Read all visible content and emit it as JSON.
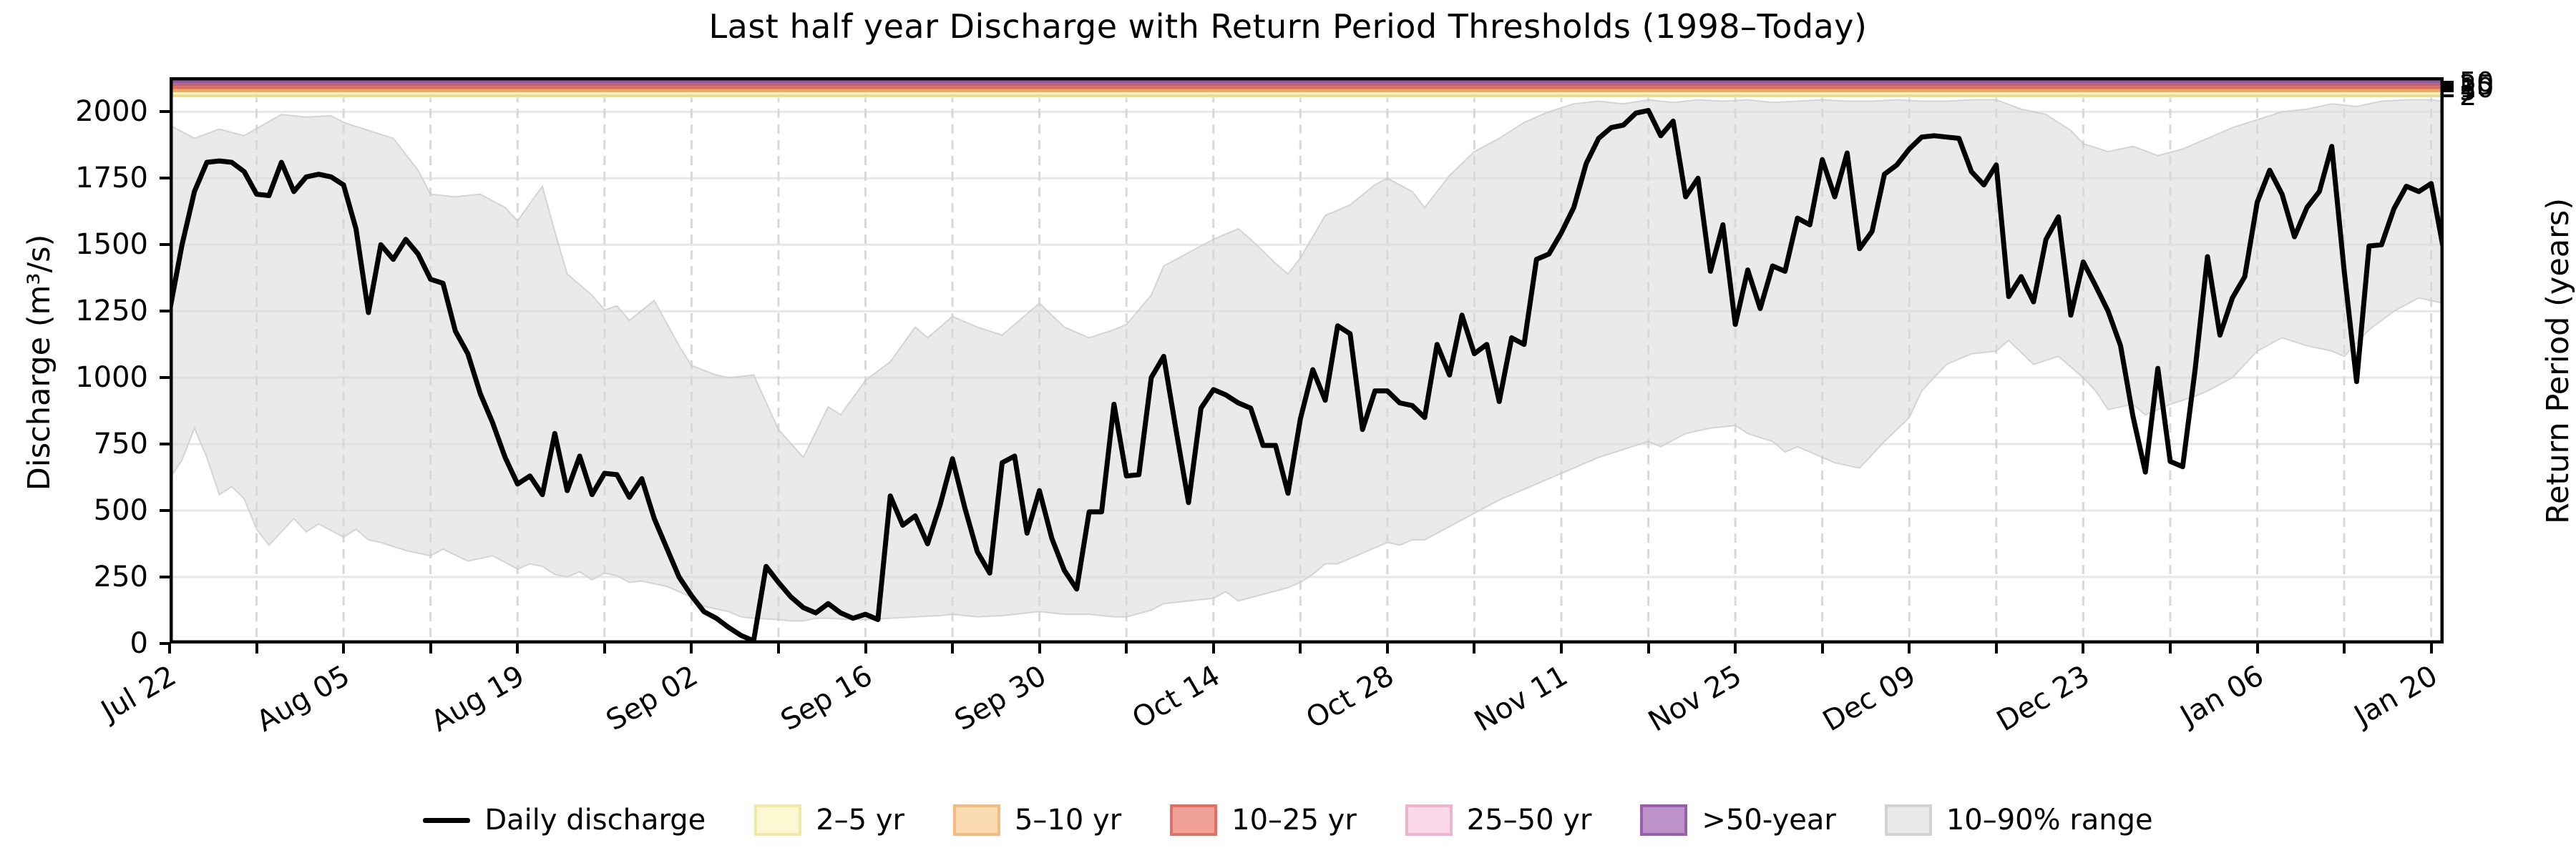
{
  "title": "Last half year Discharge with Return Period Thresholds (1998–Today)",
  "axes": {
    "left_label": "Discharge (m³/s)",
    "right_label": "Return Period (years)",
    "y_ticks": [
      {
        "label": "0",
        "value": 0
      },
      {
        "label": "250",
        "value": 250
      },
      {
        "label": "500",
        "value": 500
      },
      {
        "label": "750",
        "value": 750
      },
      {
        "label": "1000",
        "value": 1000
      },
      {
        "label": "1250",
        "value": 1250
      },
      {
        "label": "1500",
        "value": 1500
      },
      {
        "label": "1750",
        "value": 1750
      },
      {
        "label": "2000",
        "value": 2000
      }
    ],
    "x_ticks": [
      {
        "label": "Jul 22",
        "day": 0
      },
      {
        "label": "Aug 05",
        "day": 14
      },
      {
        "label": "Aug 19",
        "day": 28
      },
      {
        "label": "Sep 02",
        "day": 42
      },
      {
        "label": "Sep 16",
        "day": 56
      },
      {
        "label": "Sep 30",
        "day": 70
      },
      {
        "label": "Oct 14",
        "day": 84
      },
      {
        "label": "Oct 28",
        "day": 98
      },
      {
        "label": "Nov 11",
        "day": 112
      },
      {
        "label": "Nov 25",
        "day": 126
      },
      {
        "label": "Dec 09",
        "day": 140
      },
      {
        "label": "Dec 23",
        "day": 154
      },
      {
        "label": "Jan 06",
        "day": 168
      },
      {
        "label": "Jan 20",
        "day": 182
      }
    ],
    "right_ticks": [
      {
        "label": "2",
        "value": 2060
      },
      {
        "label": "5",
        "value": 2079
      },
      {
        "label": "10",
        "value": 2090
      },
      {
        "label": "25",
        "value": 2101
      },
      {
        "label": "50",
        "value": 2112
      }
    ]
  },
  "legend": {
    "items": [
      {
        "label": "Daily discharge",
        "type": "line",
        "color": "#000000"
      },
      {
        "label": "2–5 yr",
        "type": "patch",
        "fill": "#fdf7d2",
        "edge": "#f2e9a9"
      },
      {
        "label": "5–10 yr",
        "type": "patch",
        "fill": "#fbdcb2",
        "edge": "#f3bb7f"
      },
      {
        "label": "10–25 yr",
        "type": "patch",
        "fill": "#f0a298",
        "edge": "#e17165"
      },
      {
        "label": "25–50 yr",
        "type": "patch",
        "fill": "#fad8e8",
        "edge": "#efb2cf"
      },
      {
        "label": ">50-year",
        "type": "patch",
        "fill": "#bd92c8",
        "edge": "#9a5fac"
      },
      {
        "label": "10–90% range",
        "type": "patch",
        "fill": "#e9e9e9",
        "edge": "#d2d2d2"
      }
    ]
  },
  "chart_data": {
    "type": "line",
    "title": "Last half year Discharge with Return Period Thresholds (1998–Today)",
    "xlabel": "",
    "ylabel": "Discharge (m³/s)",
    "ylabel_right": "Return Period (years)",
    "ylim": [
      0,
      2130
    ],
    "xlim_days": [
      0,
      183
    ],
    "start_date": "Jul 22",
    "end_date": "Jan 21",
    "grid": {
      "horizontal": "solid",
      "vertical": "dashed-weekly",
      "h_color": "#e7e7e7",
      "v_color": "#d8d8d8"
    },
    "series": [
      {
        "name": "Daily discharge",
        "unit": "m³/s",
        "color": "#000000",
        "daily_values": [
          1250,
          1500,
          1700,
          1810,
          1815,
          1810,
          1775,
          1690,
          1685,
          1810,
          1700,
          1755,
          1765,
          1755,
          1725,
          1560,
          1245,
          1500,
          1445,
          1520,
          1465,
          1370,
          1355,
          1175,
          1090,
          940,
          830,
          700,
          600,
          630,
          560,
          790,
          575,
          705,
          560,
          640,
          635,
          550,
          620,
          470,
          360,
          250,
          180,
          120,
          95,
          60,
          30,
          10,
          290,
          230,
          175,
          135,
          115,
          150,
          115,
          95,
          110,
          90,
          555,
          445,
          480,
          375,
          520,
          695,
          510,
          345,
          265,
          680,
          705,
          415,
          575,
          395,
          275,
          205,
          495,
          495,
          900,
          630,
          635,
          1000,
          1080,
          800,
          530,
          885,
          955,
          935,
          905,
          885,
          745,
          745,
          565,
          845,
          1030,
          915,
          1195,
          1165,
          805,
          950,
          950,
          905,
          895,
          850,
          1125,
          1010,
          1235,
          1090,
          1125,
          910,
          1150,
          1125,
          1445,
          1465,
          1545,
          1640,
          1805,
          1900,
          1940,
          1950,
          1995,
          2005,
          1910,
          1965,
          1680,
          1750,
          1400,
          1575,
          1200,
          1405,
          1260,
          1420,
          1400,
          1600,
          1575,
          1820,
          1680,
          1845,
          1485,
          1550,
          1765,
          1800,
          1860,
          1905,
          1910,
          1905,
          1900,
          1775,
          1725,
          1800,
          1305,
          1380,
          1285,
          1520,
          1605,
          1235,
          1435,
          1345,
          1250,
          1120,
          855,
          645,
          1035,
          685,
          665,
          1030,
          1455,
          1160,
          1300,
          1380,
          1660,
          1780,
          1690,
          1530,
          1640,
          1700,
          1870,
          1400,
          985,
          1495,
          1500,
          1635,
          1720,
          1700,
          1730,
          1480
        ]
      }
    ],
    "band_10_90": {
      "name": "10–90% range",
      "fill": "#d9d9d9",
      "p90": [
        [
          0,
          1950
        ],
        [
          2,
          1900
        ],
        [
          4,
          1935
        ],
        [
          6,
          1910
        ],
        [
          9,
          1990
        ],
        [
          11,
          1980
        ],
        [
          13,
          1985
        ],
        [
          14,
          1960
        ],
        [
          16,
          1930
        ],
        [
          18,
          1900
        ],
        [
          20,
          1780
        ],
        [
          21,
          1690
        ],
        [
          23,
          1680
        ],
        [
          25,
          1690
        ],
        [
          27,
          1640
        ],
        [
          28,
          1590
        ],
        [
          30,
          1720
        ],
        [
          31,
          1550
        ],
        [
          32,
          1390
        ],
        [
          34,
          1310
        ],
        [
          35,
          1255
        ],
        [
          36,
          1270
        ],
        [
          37,
          1215
        ],
        [
          39,
          1290
        ],
        [
          41,
          1120
        ],
        [
          42,
          1045
        ],
        [
          44,
          1010
        ],
        [
          45,
          1000
        ],
        [
          47,
          1010
        ],
        [
          49,
          805
        ],
        [
          51,
          700
        ],
        [
          53,
          890
        ],
        [
          54,
          860
        ],
        [
          56,
          990
        ],
        [
          58,
          1060
        ],
        [
          60,
          1190
        ],
        [
          61,
          1150
        ],
        [
          63,
          1230
        ],
        [
          65,
          1190
        ],
        [
          67,
          1160
        ],
        [
          68,
          1200
        ],
        [
          70,
          1280
        ],
        [
          72,
          1190
        ],
        [
          74,
          1150
        ],
        [
          76,
          1180
        ],
        [
          77,
          1200
        ],
        [
          79,
          1310
        ],
        [
          80,
          1420
        ],
        [
          82,
          1470
        ],
        [
          84,
          1520
        ],
        [
          86,
          1560
        ],
        [
          87,
          1520
        ],
        [
          89,
          1430
        ],
        [
          90,
          1390
        ],
        [
          91,
          1450
        ],
        [
          93,
          1610
        ],
        [
          95,
          1650
        ],
        [
          97,
          1725
        ],
        [
          98,
          1750
        ],
        [
          100,
          1700
        ],
        [
          101,
          1640
        ],
        [
          103,
          1760
        ],
        [
          105,
          1850
        ],
        [
          107,
          1900
        ],
        [
          109,
          1960
        ],
        [
          111,
          2000
        ],
        [
          113,
          2030
        ],
        [
          115,
          2040
        ],
        [
          117,
          2030
        ],
        [
          119,
          2045
        ],
        [
          121,
          2035
        ],
        [
          123,
          2045
        ],
        [
          125,
          2040
        ],
        [
          127,
          2045
        ],
        [
          129,
          2035
        ],
        [
          131,
          2040
        ],
        [
          133,
          2045
        ],
        [
          135,
          2040
        ],
        [
          137,
          2040
        ],
        [
          139,
          2045
        ],
        [
          141,
          2040
        ],
        [
          143,
          2040
        ],
        [
          145,
          2045
        ],
        [
          147,
          2045
        ],
        [
          149,
          2010
        ],
        [
          151,
          1990
        ],
        [
          153,
          1930
        ],
        [
          154,
          1880
        ],
        [
          156,
          1850
        ],
        [
          158,
          1870
        ],
        [
          160,
          1835
        ],
        [
          162,
          1860
        ],
        [
          164,
          1900
        ],
        [
          166,
          1940
        ],
        [
          168,
          1970
        ],
        [
          170,
          2000
        ],
        [
          172,
          2010
        ],
        [
          174,
          2030
        ],
        [
          176,
          2020
        ],
        [
          178,
          2040
        ],
        [
          180,
          2045
        ],
        [
          182,
          2045
        ],
        [
          183,
          2040
        ]
      ],
      "p10": [
        [
          0,
          620
        ],
        [
          1,
          690
        ],
        [
          2,
          810
        ],
        [
          3,
          700
        ],
        [
          4,
          560
        ],
        [
          5,
          590
        ],
        [
          6,
          545
        ],
        [
          7,
          430
        ],
        [
          8,
          370
        ],
        [
          9,
          420
        ],
        [
          10,
          470
        ],
        [
          11,
          420
        ],
        [
          12,
          450
        ],
        [
          14,
          400
        ],
        [
          15,
          430
        ],
        [
          16,
          390
        ],
        [
          17,
          380
        ],
        [
          19,
          350
        ],
        [
          21,
          330
        ],
        [
          22,
          355
        ],
        [
          24,
          310
        ],
        [
          26,
          330
        ],
        [
          28,
          280
        ],
        [
          29,
          300
        ],
        [
          30,
          290
        ],
        [
          31,
          260
        ],
        [
          32,
          250
        ],
        [
          33,
          270
        ],
        [
          34,
          240
        ],
        [
          35,
          265
        ],
        [
          36,
          255
        ],
        [
          37,
          230
        ],
        [
          38,
          235
        ],
        [
          40,
          215
        ],
        [
          42,
          175
        ],
        [
          43,
          140
        ],
        [
          45,
          120
        ],
        [
          46,
          100
        ],
        [
          47,
          95
        ],
        [
          49,
          90
        ],
        [
          50,
          85
        ],
        [
          51,
          85
        ],
        [
          52,
          95
        ],
        [
          53,
          95
        ],
        [
          55,
          90
        ],
        [
          56,
          90
        ],
        [
          58,
          95
        ],
        [
          60,
          100
        ],
        [
          62,
          105
        ],
        [
          63,
          110
        ],
        [
          65,
          100
        ],
        [
          67,
          105
        ],
        [
          69,
          115
        ],
        [
          70,
          120
        ],
        [
          72,
          110
        ],
        [
          74,
          110
        ],
        [
          76,
          100
        ],
        [
          77,
          100
        ],
        [
          79,
          125
        ],
        [
          80,
          150
        ],
        [
          82,
          160
        ],
        [
          84,
          170
        ],
        [
          85,
          195
        ],
        [
          86,
          160
        ],
        [
          88,
          185
        ],
        [
          90,
          210
        ],
        [
          91,
          230
        ],
        [
          92,
          260
        ],
        [
          93,
          300
        ],
        [
          94,
          300
        ],
        [
          96,
          340
        ],
        [
          98,
          380
        ],
        [
          99,
          370
        ],
        [
          100,
          390
        ],
        [
          101,
          390
        ],
        [
          103,
          440
        ],
        [
          105,
          490
        ],
        [
          107,
          540
        ],
        [
          109,
          580
        ],
        [
          111,
          620
        ],
        [
          113,
          660
        ],
        [
          115,
          700
        ],
        [
          117,
          730
        ],
        [
          119,
          760
        ],
        [
          120,
          740
        ],
        [
          122,
          790
        ],
        [
          124,
          810
        ],
        [
          126,
          820
        ],
        [
          127,
          790
        ],
        [
          129,
          760
        ],
        [
          130,
          720
        ],
        [
          131,
          740
        ],
        [
          133,
          700
        ],
        [
          134,
          680
        ],
        [
          136,
          660
        ],
        [
          138,
          760
        ],
        [
          140,
          850
        ],
        [
          141,
          950
        ],
        [
          143,
          1050
        ],
        [
          145,
          1090
        ],
        [
          147,
          1100
        ],
        [
          148,
          1140
        ],
        [
          150,
          1050
        ],
        [
          152,
          1080
        ],
        [
          154,
          1000
        ],
        [
          155,
          950
        ],
        [
          156,
          880
        ],
        [
          158,
          900
        ],
        [
          159,
          860
        ],
        [
          161,
          900
        ],
        [
          163,
          930
        ],
        [
          164,
          950
        ],
        [
          166,
          1000
        ],
        [
          168,
          1100
        ],
        [
          170,
          1150
        ],
        [
          172,
          1120
        ],
        [
          174,
          1100
        ],
        [
          175,
          1080
        ],
        [
          177,
          1180
        ],
        [
          179,
          1250
        ],
        [
          181,
          1300
        ],
        [
          183,
          1280
        ]
      ]
    },
    "thresholds": {
      "axis_label": "Return Period (years)",
      "return_periods": [
        {
          "years": "2",
          "discharge": 2060,
          "line_color": "#e8d985"
        },
        {
          "years": "5",
          "discharge": 2079,
          "line_color": "#eda25e"
        },
        {
          "years": "10",
          "discharge": 2090,
          "line_color": "#dd6b5d"
        },
        {
          "years": "25",
          "discharge": 2101,
          "line_color": "#c06183"
        },
        {
          "years": "50",
          "discharge": 2112,
          "line_color": "#8c5aa0"
        }
      ],
      "bands": [
        {
          "name": ">50-year",
          "from": 2112,
          "to": 2130,
          "color": "#a475b2"
        },
        {
          "name": "25–50 yr",
          "from": 2101,
          "to": 2112,
          "color": "#c9849e"
        },
        {
          "name": "10–25 yr",
          "from": 2090,
          "to": 2101,
          "color": "#ec8b74"
        },
        {
          "name": "5–10 yr",
          "from": 2079,
          "to": 2090,
          "color": "#f6bf87"
        },
        {
          "name": "2–5 yr",
          "from": 2046,
          "to": 2079,
          "color": "#fbe9ae",
          "fade": true
        }
      ]
    },
    "legend_position": "bottom-center"
  }
}
